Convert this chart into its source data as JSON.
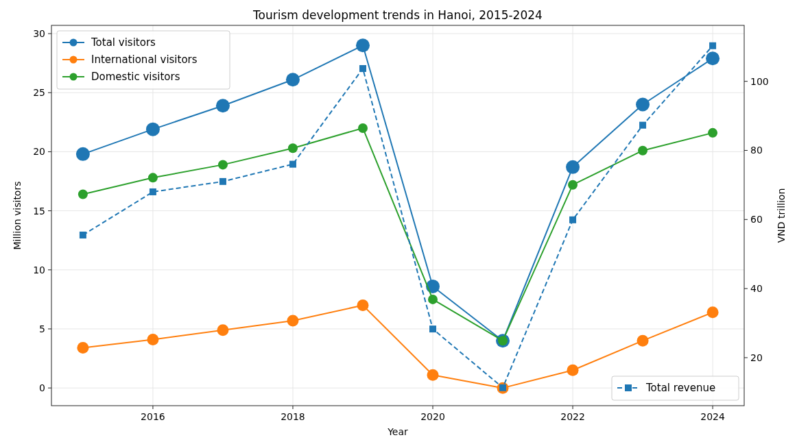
{
  "chart_data": {
    "type": "line",
    "title": "Tourism development trends in Hanoi, 2015-2024",
    "xlabel": "Year",
    "ylabel": "Million visitors",
    "y2label": "VND trillion",
    "x": [
      2015,
      2016,
      2017,
      2018,
      2019,
      2020,
      2021,
      2022,
      2023,
      2024
    ],
    "series": [
      {
        "name": "Total visitors",
        "color": "#1f77b4",
        "values": [
          19.8,
          21.9,
          23.9,
          26.1,
          29.0,
          8.6,
          4.0,
          18.7,
          24.0,
          27.9
        ]
      },
      {
        "name": "International visitors",
        "color": "#ff7f0e",
        "values": [
          3.4,
          4.1,
          4.9,
          5.7,
          7.0,
          1.1,
          0.0,
          1.5,
          4.0,
          6.4
        ]
      },
      {
        "name": "Domestic visitors",
        "color": "#2ca02c",
        "values": [
          16.4,
          17.8,
          18.9,
          20.3,
          22.0,
          7.5,
          4.0,
          17.2,
          20.1,
          21.6
        ]
      },
      {
        "name": "Total revenue",
        "color": "#1f77b4",
        "axis": "y2",
        "marker": "square",
        "line_style": "dashed",
        "values": [
          55.5,
          68.0,
          71.0,
          76.0,
          103.7,
          28.3,
          11.3,
          59.9,
          87.3,
          110.3
        ]
      }
    ],
    "xlim": [
      2014.55,
      2024.45
    ],
    "xticks": [
      2016,
      2018,
      2020,
      2022,
      2024
    ],
    "ylim": [
      -1.5,
      30.7
    ],
    "yticks": [
      0,
      5,
      10,
      15,
      20,
      25,
      30
    ],
    "y2lim": [
      6.1,
      116.2
    ],
    "y2ticks": [
      20,
      40,
      60,
      80,
      100
    ],
    "grid": true,
    "legend": "top left",
    "marker": "circle",
    "line_style": "solid"
  }
}
